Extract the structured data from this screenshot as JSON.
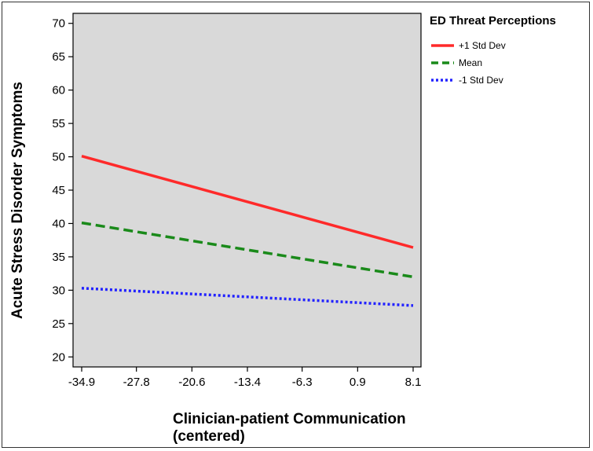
{
  "chart_data": {
    "type": "line",
    "xlabel_lines": [
      "Clinician-patient Communication",
      "(centered)"
    ],
    "ylabel": "Acute Stress Disorder Symptoms",
    "x_ticks": [
      "-34.9",
      "-27.8",
      "-20.6",
      "-13.4",
      "-6.3",
      "0.9",
      "8.1"
    ],
    "x_tick_values": [
      -34.9,
      -27.8,
      -20.6,
      -13.4,
      -6.3,
      0.9,
      8.1
    ],
    "y_ticks": [
      "20",
      "25",
      "30",
      "35",
      "40",
      "45",
      "50",
      "55",
      "60",
      "65",
      "70"
    ],
    "y_tick_values": [
      20,
      25,
      30,
      35,
      40,
      45,
      50,
      55,
      60,
      65,
      70
    ],
    "xlim": [
      -34.9,
      8.1
    ],
    "ylim": [
      18.5,
      71.5
    ],
    "legend_title": "ED Threat Perceptions",
    "legend_position": "right",
    "plot_background": "#d9d9d9",
    "series": [
      {
        "name": "+1 Std Dev",
        "color": "#ff2a2a",
        "dash": "solid",
        "x": [
          -34.9,
          8.1
        ],
        "y": [
          50.1,
          36.4
        ]
      },
      {
        "name": "Mean",
        "color": "#1a8a1a",
        "dash": "dashed",
        "x": [
          -34.9,
          8.1
        ],
        "y": [
          40.1,
          32.0
        ]
      },
      {
        "name": "-1 Std Dev",
        "color": "#2323ff",
        "dash": "dotted",
        "x": [
          -34.9,
          8.1
        ],
        "y": [
          30.3,
          27.7
        ]
      }
    ]
  }
}
